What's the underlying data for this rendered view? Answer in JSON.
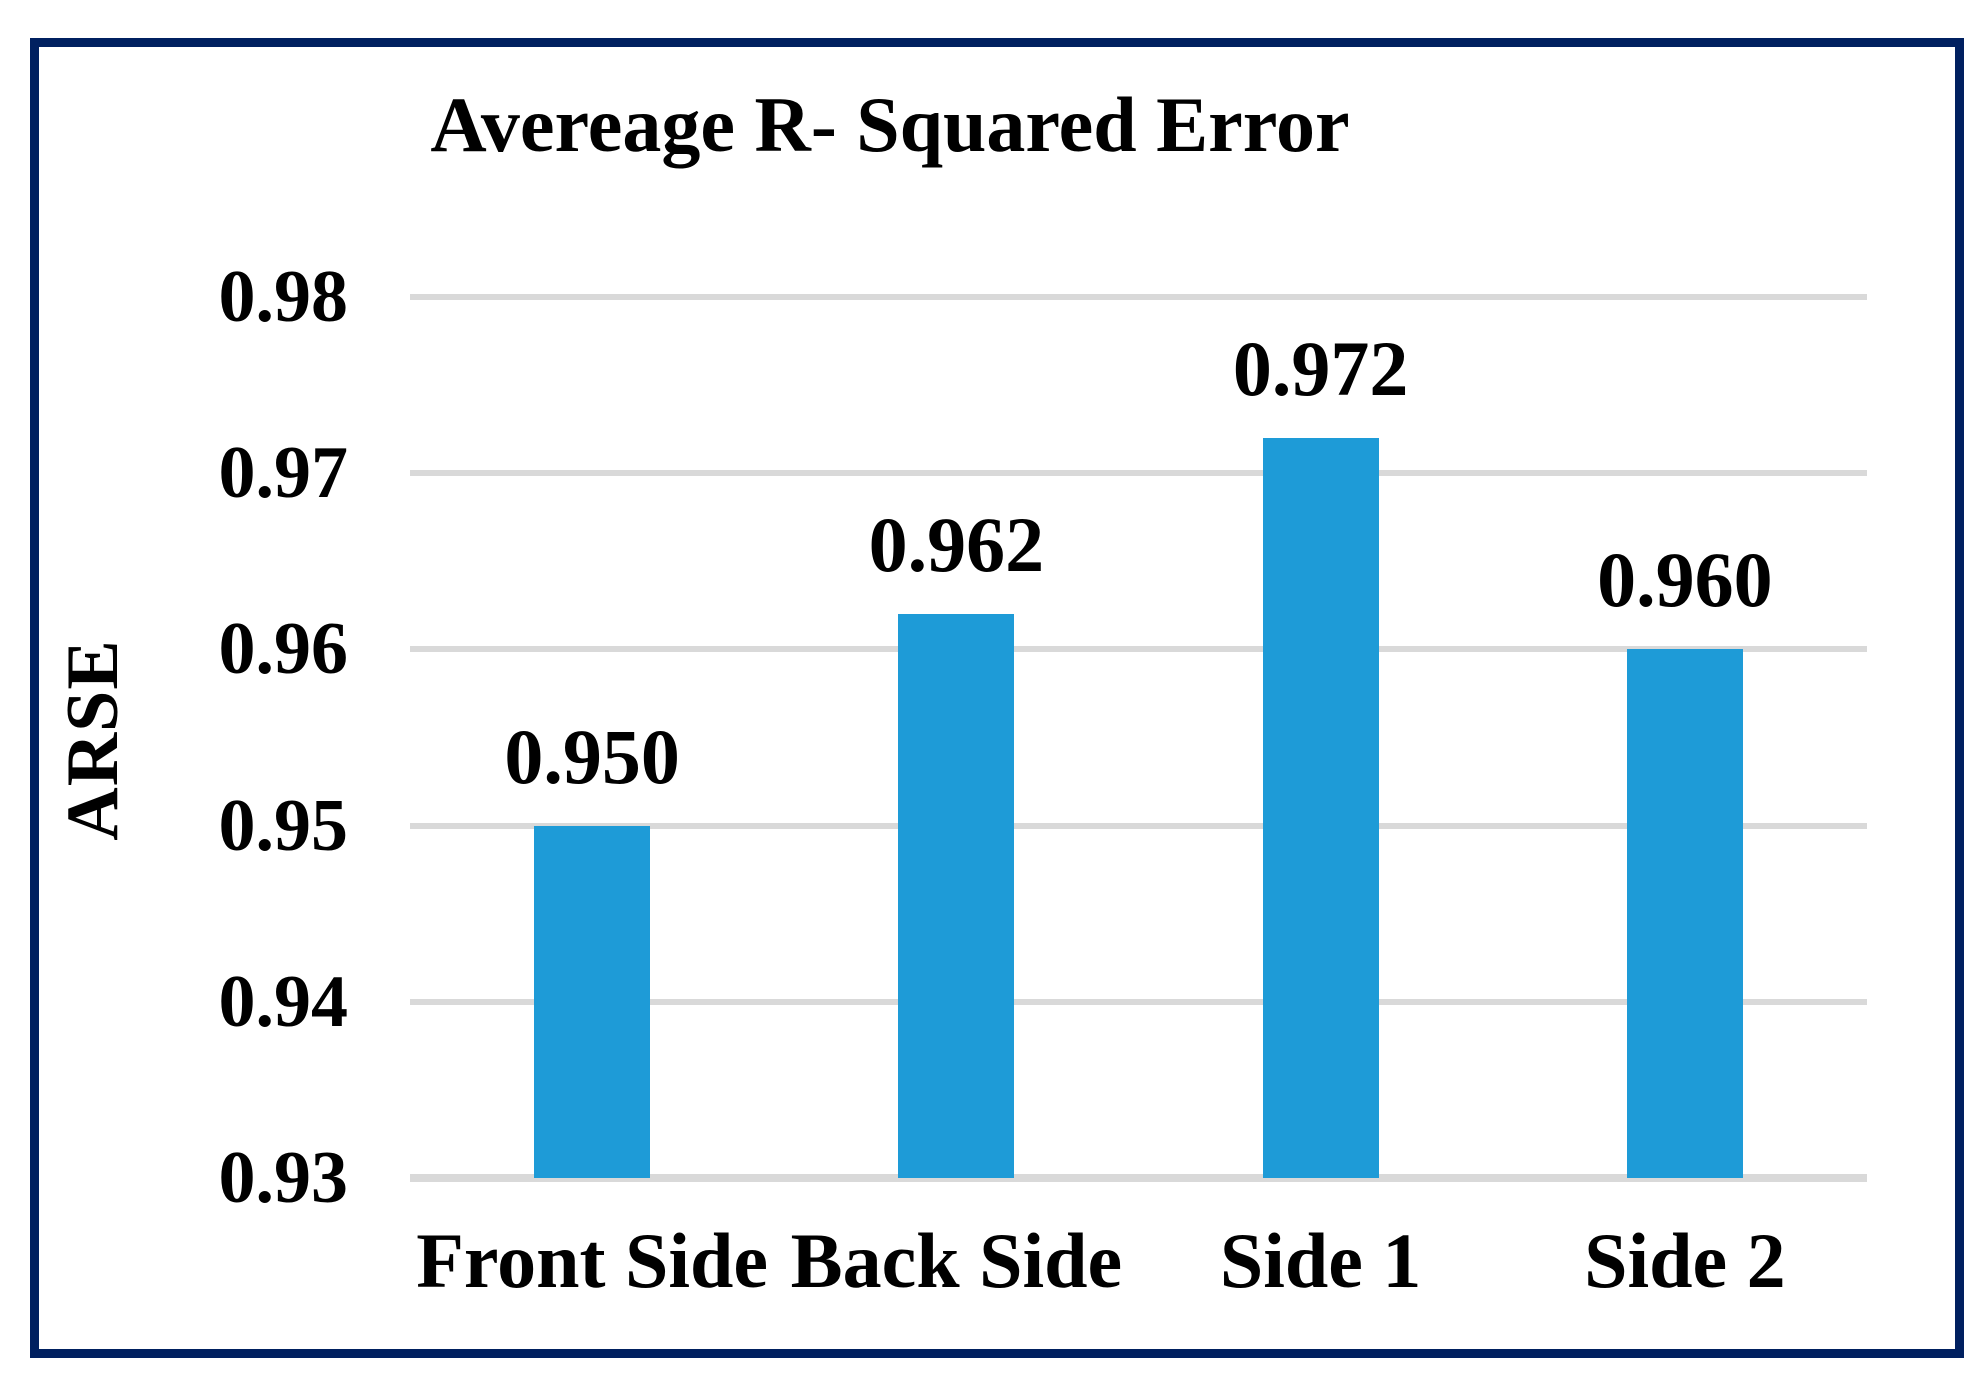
{
  "chart_data": {
    "type": "bar",
    "title": "Avereage R- Squared Error",
    "ylabel": "ARSE",
    "xlabel": "",
    "categories": [
      "Front Side",
      "Back Side",
      "Side 1",
      "Side 2"
    ],
    "values": [
      0.95,
      0.962,
      0.972,
      0.96
    ],
    "value_labels": [
      "0.950",
      "0.962",
      "0.972",
      "0.960"
    ],
    "yticks": [
      "0.98",
      "0.97",
      "0.96",
      "0.95",
      "0.94",
      "0.93"
    ],
    "ylim": [
      0.93,
      0.98
    ],
    "grid": "horizontal",
    "legend": "none",
    "colors": {
      "bar": "#1E9BD7",
      "frame_border": "#002060",
      "gridline": "#D9D9D9",
      "text": "#000000",
      "background": "#FFFFFF"
    }
  }
}
